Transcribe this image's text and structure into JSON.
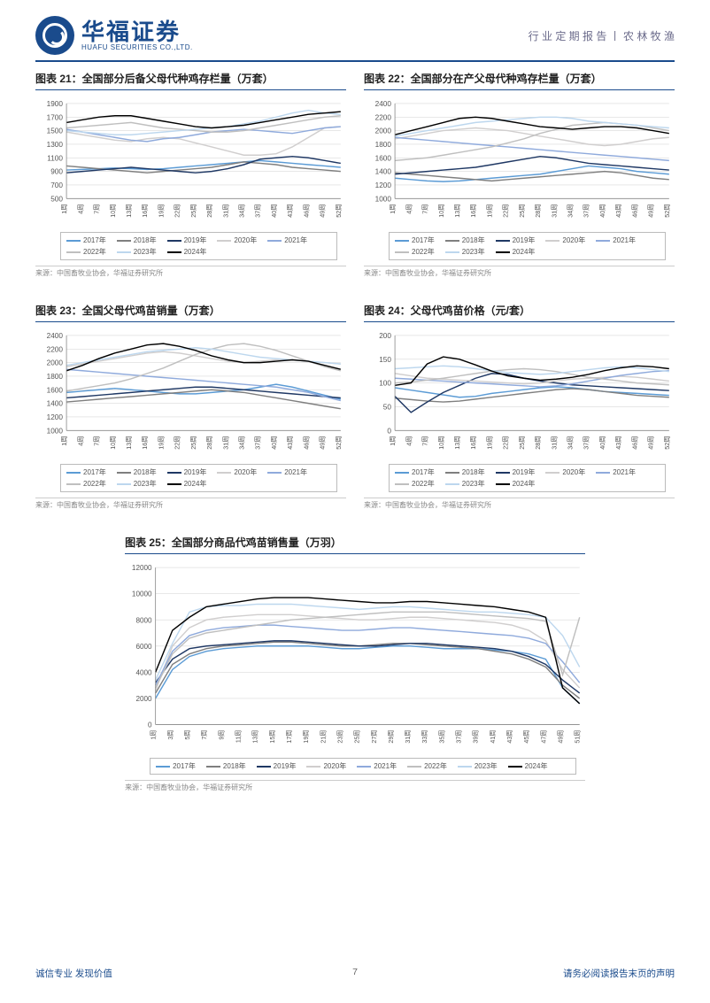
{
  "header": {
    "logo_cn": "华福证券",
    "logo_en": "HUAFU SECURITIES CO.,LTD.",
    "right": "行 业 定 期 报 告 丨 农 林 牧 渔"
  },
  "series_colors": {
    "2017": "#5b9bd5",
    "2018": "#7f7f7f",
    "2019": "#1f3864",
    "2020": "#d0cece",
    "2021": "#8faadc",
    "2022": "#bfbfbf",
    "2023": "#bdd7ee",
    "2024": "#000000"
  },
  "years": [
    "2017年",
    "2018年",
    "2019年",
    "2020年",
    "2021年",
    "2022年",
    "2023年",
    "2024年"
  ],
  "charts": [
    {
      "id": "c21",
      "title": "图表 21：全国部分后备父母代种鸡存栏量（万套）",
      "ylim": [
        500,
        1900
      ],
      "ystep": 200,
      "xticks": [
        "1周",
        "4周",
        "7周",
        "10周",
        "13周",
        "16周",
        "19周",
        "22周",
        "25周",
        "28周",
        "31周",
        "34周",
        "37周",
        "40周",
        "43周",
        "46周",
        "49周",
        "52周"
      ],
      "series": {
        "2017": [
          920,
          930,
          940,
          950,
          940,
          930,
          940,
          960,
          980,
          1000,
          1020,
          1040,
          1060,
          1040,
          1020,
          1000,
          980,
          960
        ],
        "2018": [
          980,
          960,
          940,
          920,
          900,
          880,
          900,
          920,
          940,
          960,
          1000,
          1040,
          1020,
          1000,
          960,
          940,
          920,
          900
        ],
        "2019": [
          880,
          900,
          920,
          940,
          960,
          940,
          920,
          900,
          880,
          900,
          940,
          1000,
          1080,
          1100,
          1120,
          1100,
          1060,
          1020
        ],
        "2020": [
          1480,
          1440,
          1400,
          1360,
          1340,
          1380,
          1400,
          1380,
          1320,
          1260,
          1200,
          1140,
          1140,
          1160,
          1260,
          1400,
          1540,
          1560
        ],
        "2021": [
          1520,
          1480,
          1440,
          1400,
          1360,
          1340,
          1380,
          1400,
          1440,
          1480,
          1500,
          1520,
          1500,
          1480,
          1460,
          1500,
          1540,
          1560
        ],
        "2022": [
          1540,
          1560,
          1580,
          1600,
          1620,
          1580,
          1540,
          1520,
          1500,
          1480,
          1480,
          1500,
          1540,
          1580,
          1620,
          1660,
          1700,
          1720
        ],
        "2023": [
          1500,
          1480,
          1460,
          1440,
          1440,
          1460,
          1480,
          1500,
          1520,
          1540,
          1560,
          1600,
          1640,
          1700,
          1760,
          1800,
          1760,
          1740
        ],
        "2024": [
          1620,
          1660,
          1700,
          1720,
          1720,
          1680,
          1640,
          1600,
          1560,
          1540,
          1560,
          1580,
          1620,
          1660,
          1700,
          1740,
          1760,
          1780
        ]
      },
      "source": "来源：中国畜牧业协会，华福证券研究所"
    },
    {
      "id": "c22",
      "title": "图表 22：全国部分在产父母代种鸡存栏量（万套）",
      "ylim": [
        1000,
        2400
      ],
      "ystep": 200,
      "xticks": [
        "1周",
        "4周",
        "7周",
        "10周",
        "13周",
        "16周",
        "19周",
        "22周",
        "25周",
        "28周",
        "31周",
        "34周",
        "37周",
        "40周",
        "43周",
        "46周",
        "49周",
        "52周"
      ],
      "series": {
        "2017": [
          1300,
          1280,
          1260,
          1250,
          1260,
          1280,
          1300,
          1320,
          1340,
          1360,
          1400,
          1440,
          1480,
          1460,
          1440,
          1400,
          1380,
          1360
        ],
        "2018": [
          1380,
          1360,
          1340,
          1320,
          1300,
          1280,
          1260,
          1280,
          1300,
          1320,
          1340,
          1360,
          1380,
          1400,
          1380,
          1340,
          1300,
          1280
        ],
        "2019": [
          1360,
          1380,
          1400,
          1420,
          1440,
          1460,
          1500,
          1540,
          1580,
          1620,
          1600,
          1560,
          1520,
          1500,
          1480,
          1460,
          1440,
          1420
        ],
        "2020": [
          1880,
          1920,
          1960,
          2000,
          2020,
          2040,
          2020,
          2000,
          1960,
          1920,
          1880,
          1840,
          1800,
          1780,
          1800,
          1840,
          1880,
          1900
        ],
        "2021": [
          1900,
          1880,
          1860,
          1840,
          1820,
          1800,
          1780,
          1760,
          1740,
          1720,
          1700,
          1680,
          1660,
          1640,
          1620,
          1600,
          1580,
          1560
        ],
        "2022": [
          1560,
          1580,
          1600,
          1640,
          1680,
          1720,
          1760,
          1820,
          1880,
          1960,
          2020,
          2080,
          2100,
          2120,
          2100,
          2080,
          2040,
          2000
        ],
        "2023": [
          1920,
          1960,
          2000,
          2040,
          2080,
          2120,
          2140,
          2160,
          2180,
          2200,
          2200,
          2180,
          2140,
          2120,
          2100,
          2080,
          2060,
          2040
        ],
        "2024": [
          1940,
          2000,
          2060,
          2120,
          2180,
          2200,
          2180,
          2140,
          2100,
          2060,
          2040,
          2020,
          2040,
          2060,
          2060,
          2040,
          2000,
          1960
        ]
      },
      "source": "来源：中国畜牧业协会，华福证券研究所"
    },
    {
      "id": "c23",
      "title": "图表 23：全国父母代鸡苗销量（万套）",
      "ylim": [
        1000,
        2400
      ],
      "ystep": 200,
      "xticks": [
        "1周",
        "4周",
        "7周",
        "10周",
        "13周",
        "16周",
        "19周",
        "22周",
        "25周",
        "28周",
        "31周",
        "34周",
        "37周",
        "40周",
        "43周",
        "46周",
        "49周",
        "52周"
      ],
      "series": {
        "2017": [
          1560,
          1580,
          1600,
          1620,
          1600,
          1580,
          1560,
          1540,
          1540,
          1560,
          1580,
          1600,
          1640,
          1680,
          1640,
          1580,
          1520,
          1460
        ],
        "2018": [
          1420,
          1440,
          1460,
          1480,
          1500,
          1520,
          1540,
          1560,
          1580,
          1600,
          1580,
          1560,
          1520,
          1480,
          1440,
          1400,
          1360,
          1320
        ],
        "2019": [
          1480,
          1500,
          1520,
          1540,
          1560,
          1580,
          1600,
          1620,
          1640,
          1640,
          1620,
          1600,
          1580,
          1560,
          1540,
          1520,
          1500,
          1480
        ],
        "2020": [
          1940,
          1980,
          2020,
          2060,
          2100,
          2140,
          2160,
          2140,
          2100,
          2060,
          2020,
          2000,
          2020,
          2040,
          2040,
          2020,
          2000,
          1980
        ],
        "2021": [
          1900,
          1880,
          1860,
          1840,
          1820,
          1800,
          1780,
          1760,
          1740,
          1720,
          1700,
          1680,
          1660,
          1640,
          1600,
          1560,
          1500,
          1440
        ],
        "2022": [
          1580,
          1620,
          1660,
          1700,
          1760,
          1840,
          1920,
          2020,
          2120,
          2200,
          2260,
          2280,
          2240,
          2180,
          2100,
          2020,
          1940,
          1880
        ],
        "2023": [
          1960,
          2000,
          2040,
          2080,
          2120,
          2160,
          2180,
          2200,
          2220,
          2200,
          2160,
          2120,
          2080,
          2060,
          2040,
          2020,
          2000,
          1980
        ],
        "2024": [
          1880,
          1960,
          2060,
          2140,
          2200,
          2260,
          2280,
          2240,
          2180,
          2100,
          2040,
          2000,
          2000,
          2020,
          2040,
          2020,
          1960,
          1900
        ]
      },
      "source": "来源：中国畜牧业协会，华福证券研究所"
    },
    {
      "id": "c24",
      "title": "图表 24：父母代鸡苗价格（元/套）",
      "ylim": [
        0,
        200
      ],
      "ystep": 50,
      "xticks": [
        "1周",
        "4周",
        "7周",
        "10周",
        "13周",
        "16周",
        "19周",
        "22周",
        "25周",
        "28周",
        "31周",
        "34周",
        "37周",
        "40周",
        "43周",
        "46周",
        "49周",
        "52周"
      ],
      "series": {
        "2017": [
          90,
          85,
          80,
          75,
          70,
          72,
          78,
          82,
          86,
          90,
          92,
          90,
          86,
          82,
          80,
          78,
          76,
          74
        ],
        "2018": [
          68,
          65,
          62,
          60,
          62,
          66,
          70,
          74,
          78,
          82,
          86,
          88,
          86,
          82,
          78,
          74,
          72,
          70
        ],
        "2019": [
          72,
          38,
          60,
          80,
          95,
          110,
          120,
          118,
          110,
          104,
          100,
          96,
          94,
          92,
          90,
          88,
          86,
          84
        ],
        "2020": [
          120,
          115,
          110,
          108,
          106,
          104,
          102,
          100,
          98,
          100,
          104,
          108,
          110,
          112,
          114,
          112,
          108,
          104
        ],
        "2021": [
          110,
          108,
          106,
          104,
          102,
          100,
          98,
          96,
          94,
          92,
          94,
          98,
          104,
          110,
          116,
          120,
          124,
          126
        ],
        "2022": [
          100,
          102,
          106,
          110,
          115,
          120,
          125,
          128,
          130,
          128,
          124,
          118,
          112,
          108,
          104,
          100,
          98,
          96
        ],
        "2023": [
          130,
          132,
          134,
          136,
          134,
          130,
          126,
          122,
          120,
          118,
          120,
          124,
          128,
          132,
          134,
          132,
          128,
          124
        ],
        "2024": [
          95,
          100,
          140,
          155,
          150,
          138,
          125,
          115,
          110,
          106,
          108,
          112,
          118,
          126,
          132,
          136,
          134,
          130
        ]
      },
      "source": "来源：中国畜牧业协会，华福证券研究所"
    },
    {
      "id": "c25",
      "title": "图表 25：全国部分商品代鸡苗销售量（万羽）",
      "ylim": [
        0,
        12000
      ],
      "ystep": 2000,
      "xticks": [
        "1周",
        "3周",
        "5周",
        "7周",
        "9周",
        "11周",
        "13周",
        "15周",
        "17周",
        "19周",
        "21周",
        "23周",
        "25周",
        "27周",
        "29周",
        "31周",
        "33周",
        "35周",
        "37周",
        "39周",
        "41周",
        "43周",
        "45周",
        "47周",
        "49周",
        "51周"
      ],
      "series": {
        "2017": [
          2000,
          4200,
          5200,
          5600,
          5800,
          5900,
          6000,
          6000,
          6000,
          6000,
          5900,
          5800,
          5800,
          5900,
          6000,
          6000,
          5900,
          5800,
          5800,
          5800,
          5700,
          5600,
          5400,
          5000,
          2800,
          1600
        ],
        "2018": [
          2400,
          4600,
          5400,
          5800,
          6000,
          6100,
          6200,
          6300,
          6300,
          6200,
          6100,
          6000,
          6000,
          6100,
          6200,
          6200,
          6100,
          6000,
          5900,
          5800,
          5600,
          5400,
          5000,
          4400,
          3000,
          2000
        ],
        "2019": [
          3200,
          5000,
          5800,
          6000,
          6100,
          6200,
          6300,
          6400,
          6400,
          6300,
          6200,
          6100,
          6000,
          6000,
          6100,
          6200,
          6200,
          6100,
          6000,
          5900,
          5800,
          5600,
          5200,
          4600,
          3400,
          2400
        ],
        "2020": [
          2600,
          6000,
          7400,
          8000,
          8200,
          8300,
          8400,
          8400,
          8400,
          8300,
          8200,
          8100,
          8000,
          8000,
          8100,
          8200,
          8200,
          8100,
          8000,
          7900,
          7800,
          7600,
          7200,
          6400,
          4200,
          2800
        ],
        "2021": [
          3000,
          5600,
          6800,
          7200,
          7400,
          7500,
          7600,
          7600,
          7500,
          7400,
          7300,
          7200,
          7200,
          7300,
          7400,
          7400,
          7300,
          7200,
          7100,
          7000,
          6900,
          6800,
          6600,
          6200,
          4800,
          3200
        ],
        "2022": [
          2800,
          5400,
          6600,
          7000,
          7200,
          7400,
          7600,
          7800,
          8000,
          8100,
          8200,
          8300,
          8400,
          8500,
          8600,
          8600,
          8600,
          8600,
          8500,
          8400,
          8300,
          8200,
          8100,
          7900,
          3800,
          8200
        ],
        "2023": [
          3400,
          6200,
          8600,
          9000,
          9100,
          9100,
          9200,
          9200,
          9200,
          9100,
          9000,
          8900,
          8800,
          8900,
          9000,
          9000,
          8900,
          8800,
          8700,
          8600,
          8600,
          8500,
          8400,
          8200,
          6800,
          4400
        ],
        "2024": [
          4000,
          7200,
          8200,
          9000,
          9200,
          9400,
          9600,
          9700,
          9700,
          9700,
          9600,
          9500,
          9400,
          9300,
          9300,
          9400,
          9400,
          9300,
          9200,
          9100,
          9000,
          8800,
          8600,
          8200,
          2800,
          1600
        ]
      },
      "source": "来源：中国畜牧业协会，华福证券研究所"
    }
  ],
  "footer": {
    "left": "诚信专业  发现价值",
    "page": "7",
    "right": "请务必阅读报告末页的声明"
  }
}
